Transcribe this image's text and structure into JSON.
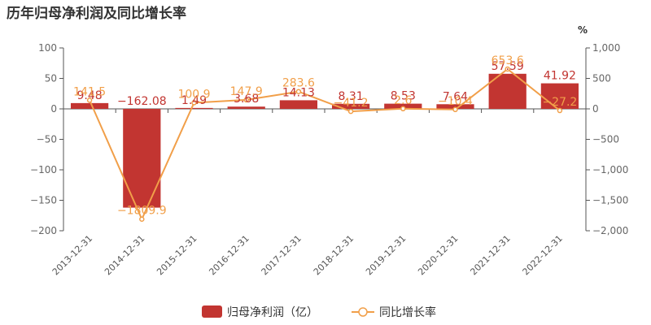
{
  "title": "历年归母净利润及同比增长率",
  "chart_data": {
    "type": "bar",
    "categories": [
      "2013-12-31",
      "2014-12-31",
      "2015-12-31",
      "2016-12-31",
      "2017-12-31",
      "2018-12-31",
      "2019-12-31",
      "2020-12-31",
      "2021-12-31",
      "2022-12-31"
    ],
    "series": [
      {
        "name": "归母净利润（亿）",
        "type": "bar",
        "values": [
          9.48,
          -162.08,
          1.49,
          3.68,
          14.13,
          8.31,
          8.53,
          7.64,
          57.59,
          41.92
        ],
        "labels": [
          "9.48",
          "−162.08",
          "1.49",
          "3.68",
          "14.13",
          "8.31",
          "8.53",
          "7.64",
          "57.59",
          "41.92"
        ]
      },
      {
        "name": "同比增长率",
        "type": "line",
        "values": [
          141.5,
          -1809.9,
          100.9,
          147.9,
          283.6,
          -41.2,
          2.6,
          -10.4,
          653.6,
          -27.2
        ],
        "labels": [
          "141.5",
          "−1809.9",
          "100.9",
          "147.9",
          "283.6",
          "−41.2",
          "2.6",
          "−10.4",
          "653.6",
          "−27.2"
        ]
      }
    ],
    "y_left": {
      "min": -200,
      "max": 100,
      "ticks": [
        "100",
        "50",
        "0",
        "−50",
        "−100",
        "−150",
        "−200"
      ],
      "tick_values": [
        100,
        50,
        0,
        -50,
        -100,
        -150,
        -200
      ]
    },
    "y_right": {
      "min": -2000,
      "max": 1000,
      "unit": "%",
      "ticks": [
        "1,000",
        "500",
        "0",
        "−500",
        "−1,000",
        "−1,500",
        "−2,000"
      ],
      "tick_values": [
        1000,
        500,
        0,
        -500,
        -1000,
        -1500,
        -2000
      ]
    },
    "legend": {
      "position": "bottom-center",
      "items": [
        "归母净利润（亿）",
        "同比增长率"
      ]
    },
    "colors": {
      "bar": "#c23531",
      "line": "#f19f49"
    },
    "grid": false
  }
}
